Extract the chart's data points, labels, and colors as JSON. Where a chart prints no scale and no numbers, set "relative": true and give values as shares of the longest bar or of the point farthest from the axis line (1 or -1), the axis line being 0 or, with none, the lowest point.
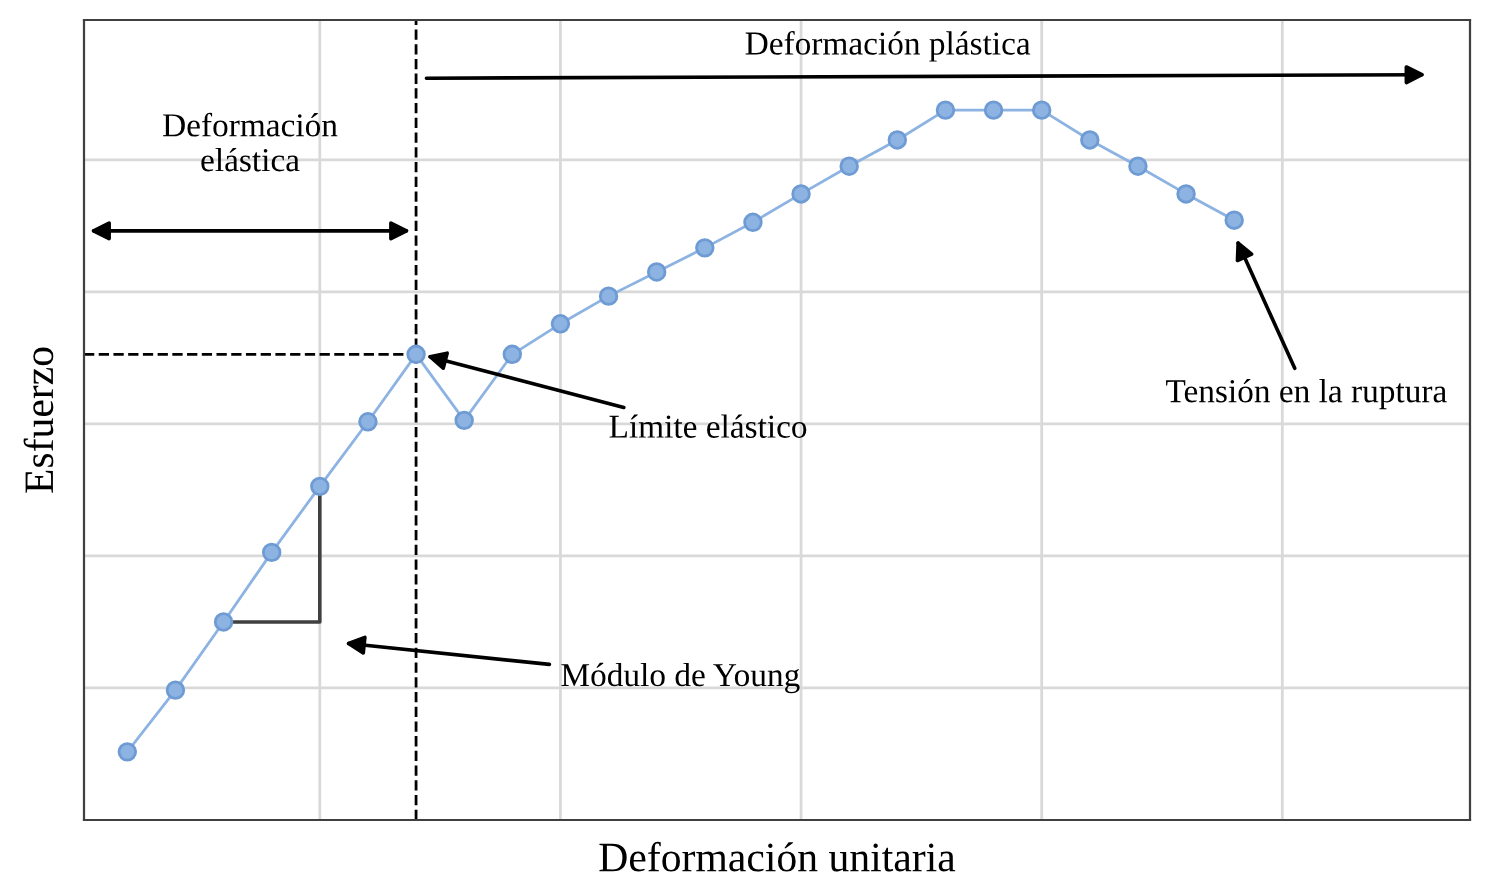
{
  "chart_data": {
    "type": "line",
    "relative": true,
    "xlabel": "Deformación unitaria",
    "ylabel": "Esfuerzo",
    "categories": [
      null,
      null,
      null,
      null,
      null,
      null,
      null,
      null,
      null,
      null,
      null,
      null,
      null,
      null,
      null,
      null,
      null,
      null,
      null,
      null,
      null,
      null,
      null,
      null
    ],
    "series": [
      {
        "color": "#8db3e2",
        "values": [
          0.096,
          0.183,
          0.279,
          0.377,
          0.47,
          0.561,
          0.656,
          0.563,
          0.656,
          0.699,
          0.738,
          0.772,
          0.806,
          0.842,
          0.882,
          0.921,
          0.958,
          1,
          1,
          1,
          0.958,
          0.921,
          0.882,
          0.845
        ]
      }
    ],
    "marker": "circle",
    "line_style": "solid",
    "grid": true,
    "tick_labels": false,
    "ref_lines": [
      {
        "axis": "y",
        "value": 0.656,
        "line_style": "dashed",
        "color": "#000000"
      }
    ],
    "annotations": [
      "Deformación\nelástica",
      "Deformación plástica",
      "Límite elástico",
      "Módulo de Young",
      "Tensión en la ruptura"
    ]
  }
}
